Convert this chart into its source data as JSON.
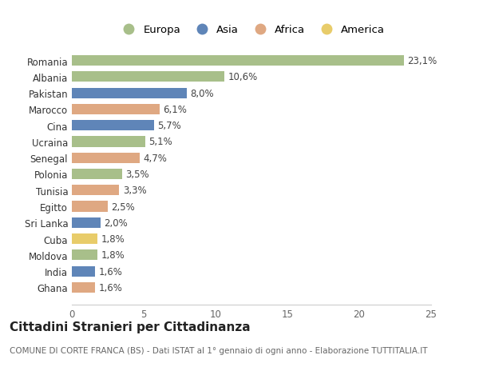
{
  "countries": [
    "Romania",
    "Albania",
    "Pakistan",
    "Marocco",
    "Cina",
    "Ucraina",
    "Senegal",
    "Polonia",
    "Tunisia",
    "Egitto",
    "Sri Lanka",
    "Cuba",
    "Moldova",
    "India",
    "Ghana"
  ],
  "values": [
    23.1,
    10.6,
    8.0,
    6.1,
    5.7,
    5.1,
    4.7,
    3.5,
    3.3,
    2.5,
    2.0,
    1.8,
    1.8,
    1.6,
    1.6
  ],
  "labels": [
    "23,1%",
    "10,6%",
    "8,0%",
    "6,1%",
    "5,7%",
    "5,1%",
    "4,7%",
    "3,5%",
    "3,3%",
    "2,5%",
    "2,0%",
    "1,8%",
    "1,8%",
    "1,6%",
    "1,6%"
  ],
  "continents": [
    "Europa",
    "Europa",
    "Asia",
    "Africa",
    "Asia",
    "Europa",
    "Africa",
    "Europa",
    "Africa",
    "Africa",
    "Asia",
    "America",
    "Europa",
    "Asia",
    "Africa"
  ],
  "continent_colors": {
    "Europa": "#a8bf8a",
    "Asia": "#5f85b8",
    "Africa": "#dfa882",
    "America": "#e8cc6a"
  },
  "legend_order": [
    "Europa",
    "Asia",
    "Africa",
    "America"
  ],
  "xlim": [
    0,
    25
  ],
  "xticks": [
    0,
    5,
    10,
    15,
    20,
    25
  ],
  "title": "Cittadini Stranieri per Cittadinanza",
  "subtitle": "COMUNE DI CORTE FRANCA (BS) - Dati ISTAT al 1° gennaio di ogni anno - Elaborazione TUTTITALIA.IT",
  "background_color": "#ffffff",
  "bar_height": 0.65,
  "title_fontsize": 11,
  "subtitle_fontsize": 7.5,
  "label_fontsize": 8.5,
  "tick_fontsize": 8.5
}
